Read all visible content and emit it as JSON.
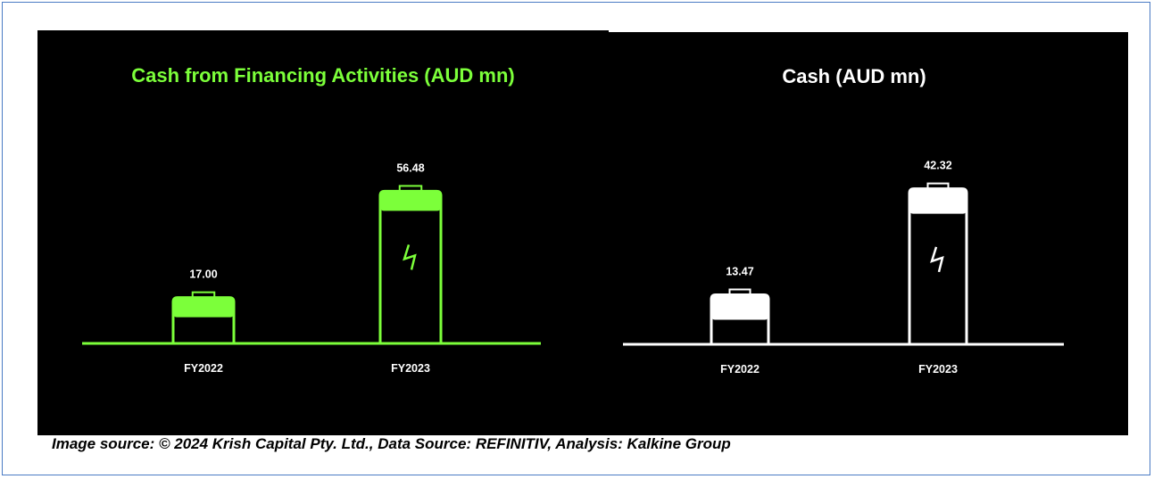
{
  "colors": {
    "green": "#7cff3a",
    "white": "#ffffff",
    "background": "#000000"
  },
  "caption": "Image source: © 2024 Krish Capital Pty. Ltd., Data Source: REFINITIV, Analysis: Kalkine Group",
  "chart_data": [
    {
      "type": "bar",
      "title": "Cash from Financing Activities (AUD mn)",
      "categories": [
        "FY2022",
        "FY2023"
      ],
      "values": [
        17.0,
        56.48
      ],
      "value_labels": [
        "17.00",
        "56.48"
      ],
      "color": "#7cff3a",
      "style": "battery",
      "icons": [
        "",
        "lightning-icon"
      ],
      "xlabel": "",
      "ylabel": ""
    },
    {
      "type": "bar",
      "title": "Cash (AUD mn)",
      "categories": [
        "FY2022",
        "FY2023"
      ],
      "values": [
        13.47,
        42.32
      ],
      "value_labels": [
        "13.47",
        "42.32"
      ],
      "color": "#ffffff",
      "style": "battery",
      "icons": [
        "",
        "lightning-icon"
      ],
      "xlabel": "",
      "ylabel": ""
    }
  ]
}
